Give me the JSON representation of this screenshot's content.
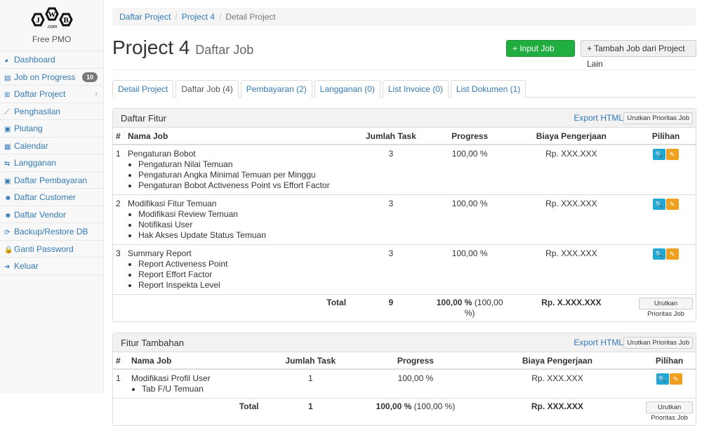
{
  "sidebar": {
    "logo_text": "JWB",
    "logo_sub": ".com",
    "app_name": "Free PMO",
    "items": [
      {
        "label": "Dashboard",
        "icon": "dashboard-icon"
      },
      {
        "label": "Job on Progress",
        "icon": "list-icon",
        "badge": "10"
      },
      {
        "label": "Daftar Project",
        "icon": "table-icon",
        "chevron": "‹"
      },
      {
        "label": "Penghasilan",
        "icon": "chart-line-icon"
      },
      {
        "label": "Piutang",
        "icon": "money-icon"
      },
      {
        "label": "Calendar",
        "icon": "calendar-icon"
      },
      {
        "label": "Langganan",
        "icon": "retweet-icon"
      },
      {
        "label": "Daftar Pembayaran",
        "icon": "money-icon"
      },
      {
        "label": "Daftar Customer",
        "icon": "users-icon"
      },
      {
        "label": "Daftar Vendor",
        "icon": "users-icon"
      },
      {
        "label": "Backup/Restore DB",
        "icon": "refresh-icon"
      },
      {
        "label": "Ganti Password",
        "icon": "lock-icon"
      },
      {
        "label": "Keluar",
        "icon": "sign-out-icon"
      }
    ]
  },
  "breadcrumb": [
    "Daftar Project",
    "Project 4",
    "Detail Project"
  ],
  "header": {
    "title": "Project 4",
    "subtitle": "Daftar Job",
    "btn_input": "+ Input Job Baru",
    "btn_tambah": "+ Tambah Job dari Project Lain"
  },
  "tabs": [
    "Detail Project",
    "Daftar Job (4)",
    "Pembayaran (2)",
    "Langganan (0)",
    "List Invoice (0)",
    "List Dokumen (1)"
  ],
  "fitur": {
    "title": "Daftar Fitur",
    "export": "Export HTML",
    "sort": "Urutkan Prioritas Job",
    "columns": [
      "#",
      "Nama Job",
      "Jumlah Task",
      "Progress",
      "Biaya Pengerjaan",
      "Pilihan"
    ],
    "rows": [
      {
        "no": "1",
        "name": "Pengaturan Bobot",
        "tasks": [
          "Pengaturan Nilai Temuan",
          "Pengaturan Angka Minimal Temuan per Minggu",
          "Pengaturan Bobot Activeness Point vs Effort Factor"
        ],
        "count": "3",
        "progress": "100,00 %",
        "biaya": "Rp. XXX.XXX"
      },
      {
        "no": "2",
        "name": "Modifikasi Fitur Temuan",
        "tasks": [
          "Modifikasi Review Temuan",
          "Notifikasi User",
          "Hak Akses Update Status Temuan"
        ],
        "count": "3",
        "progress": "100,00 %",
        "biaya": "Rp. XXX.XXX"
      },
      {
        "no": "3",
        "name": "Summary Report",
        "tasks": [
          "Report Activeness Point",
          "Report Effort Factor",
          "Report Inspekta Level"
        ],
        "count": "3",
        "progress": "100,00 %",
        "biaya": "Rp. XXX.XXX"
      }
    ],
    "total": {
      "label": "Total",
      "count": "9",
      "progress": "100,00 %",
      "progress_extra": "(100,00 %)",
      "biaya": "Rp. X.XXX.XXX"
    }
  },
  "tambahan": {
    "title": "Fitur Tambahan",
    "export": "Export HTML",
    "sort": "Urutkan Prioritas Job",
    "columns": [
      "#",
      "Nama Job",
      "Jumlah Task",
      "Progress",
      "Biaya Pengerjaan",
      "Pilihan"
    ],
    "rows": [
      {
        "no": "1",
        "name": "Modifikasi Profil User",
        "tasks": [
          "Tab F/U Temuan"
        ],
        "count": "1",
        "progress": "100,00 %",
        "biaya": "Rp. XXX.XXX"
      }
    ],
    "total": {
      "label": "Total",
      "count": "1",
      "progress": "100,00 %",
      "progress_extra": "(100,00 %)",
      "biaya": "Rp. XXX.XXX"
    }
  },
  "colors": {
    "link": "#337ab7",
    "green": "#1fae3f",
    "info": "#1fa8d6",
    "warning": "#f0a020"
  }
}
